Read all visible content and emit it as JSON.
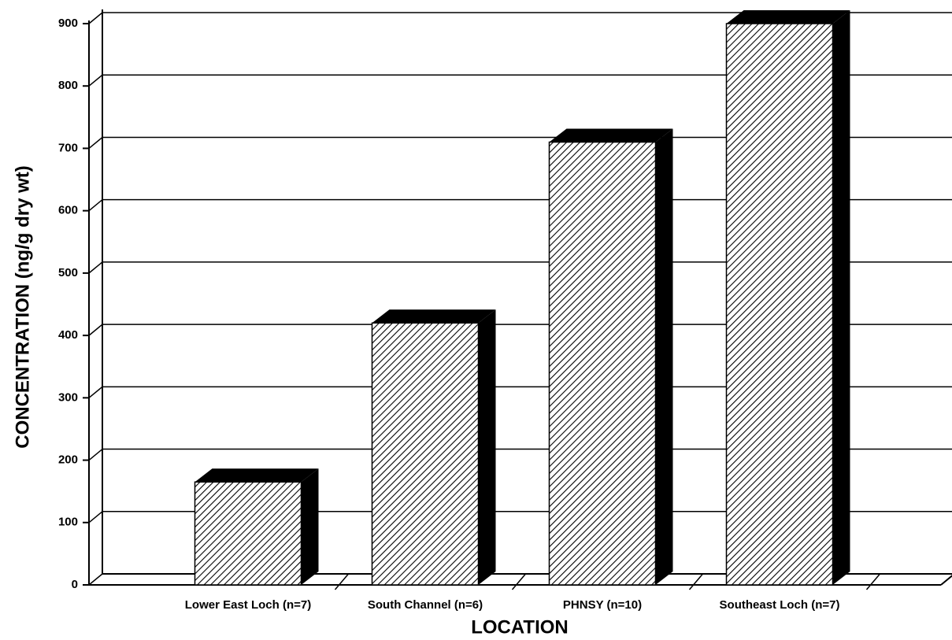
{
  "chart_data": {
    "type": "bar",
    "xlabel": "LOCATION",
    "ylabel": "CONCENTRATION (ng/g dry wt)",
    "categories": [
      "Lower East Loch (n=7)",
      "South Channel (n=6)",
      "PHNSY (n=10)",
      "Southeast Loch (n=7)"
    ],
    "values": [
      165,
      420,
      710,
      900
    ],
    "color": "#000000",
    "ylim": [
      0,
      900
    ],
    "yticks": [
      0,
      100,
      200,
      300,
      400,
      500,
      600,
      700,
      800,
      900
    ],
    "grid": true
  }
}
